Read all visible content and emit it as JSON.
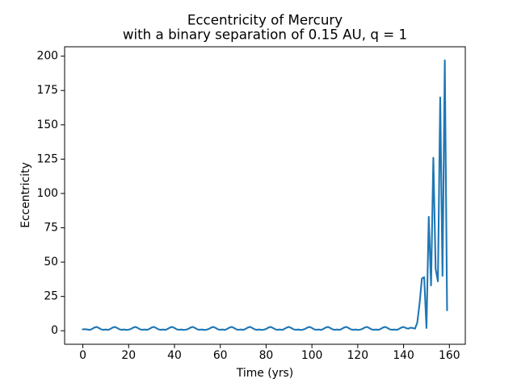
{
  "chart_data": {
    "type": "line",
    "title": "Eccentricity of Mercury",
    "subtitle": "with a binary separation of 0.15 AU, q = 1",
    "x_label": "Time (yrs)",
    "y_label": "Eccentricity",
    "color": "#1f77b4",
    "x": [
      0,
      1,
      2,
      3,
      4,
      5,
      6,
      7,
      8,
      9,
      10,
      11,
      12,
      13,
      14,
      15,
      16,
      17,
      18,
      19,
      20,
      21,
      22,
      23,
      24,
      25,
      26,
      27,
      28,
      29,
      30,
      31,
      32,
      33,
      34,
      35,
      36,
      37,
      38,
      39,
      40,
      41,
      42,
      43,
      44,
      45,
      46,
      47,
      48,
      49,
      50,
      51,
      52,
      53,
      54,
      55,
      56,
      57,
      58,
      59,
      60,
      61,
      62,
      63,
      64,
      65,
      66,
      67,
      68,
      69,
      70,
      71,
      72,
      73,
      74,
      75,
      76,
      77,
      78,
      79,
      80,
      81,
      82,
      83,
      84,
      85,
      86,
      87,
      88,
      89,
      90,
      91,
      92,
      93,
      94,
      95,
      96,
      97,
      98,
      99,
      100,
      101,
      102,
      103,
      104,
      105,
      106,
      107,
      108,
      109,
      110,
      111,
      112,
      113,
      114,
      115,
      116,
      117,
      118,
      119,
      120,
      121,
      122,
      123,
      124,
      125,
      126,
      127,
      128,
      129,
      130,
      131,
      132,
      133,
      134,
      135,
      136,
      137,
      138,
      139,
      140,
      141,
      142,
      143,
      144,
      145,
      146,
      147,
      148,
      149,
      150,
      151,
      152,
      153,
      154,
      155,
      156,
      157,
      158,
      159
    ],
    "values": [
      1.0,
      1.1,
      0.9,
      0.6,
      1.3,
      2.3,
      2.8,
      2.0,
      1.0,
      0.7,
      0.9,
      0.6,
      1.3,
      2.3,
      2.8,
      2.0,
      1.0,
      0.7,
      0.9,
      0.6,
      0.8,
      1.3,
      2.3,
      2.8,
      2.0,
      1.0,
      0.7,
      0.9,
      0.6,
      1.3,
      2.3,
      2.8,
      2.0,
      1.0,
      0.7,
      0.9,
      0.6,
      1.3,
      2.3,
      2.8,
      2.0,
      1.0,
      0.7,
      0.9,
      0.6,
      0.8,
      1.3,
      2.3,
      2.8,
      2.0,
      1.0,
      0.7,
      0.9,
      0.6,
      0.8,
      1.3,
      2.3,
      2.8,
      2.0,
      1.0,
      0.7,
      0.9,
      0.6,
      1.3,
      2.3,
      2.8,
      2.0,
      1.0,
      0.7,
      0.9,
      0.6,
      1.3,
      2.3,
      2.8,
      2.0,
      1.0,
      0.7,
      0.9,
      0.6,
      0.8,
      1.3,
      2.3,
      2.8,
      2.0,
      1.0,
      0.7,
      0.9,
      0.6,
      1.3,
      2.3,
      2.8,
      2.0,
      1.0,
      0.7,
      0.9,
      0.6,
      0.8,
      1.3,
      2.3,
      2.8,
      2.0,
      1.0,
      0.7,
      0.9,
      0.6,
      1.3,
      2.3,
      2.8,
      2.0,
      1.0,
      0.7,
      0.9,
      0.6,
      1.3,
      2.3,
      2.8,
      2.0,
      1.0,
      0.7,
      0.9,
      0.6,
      0.8,
      1.3,
      2.3,
      2.8,
      2.0,
      1.0,
      0.7,
      0.9,
      0.6,
      1.3,
      2.3,
      2.8,
      2.0,
      1.0,
      0.7,
      0.9,
      0.6,
      1.3,
      2.3,
      2.8,
      2.0,
      1.5,
      2.2,
      2.0,
      1.5,
      6,
      20,
      38,
      39,
      2,
      83,
      33,
      126,
      45,
      36,
      170,
      40,
      197,
      15
    ],
    "xlim": [
      -7.95,
      166.95
    ],
    "xticks": [
      0,
      20,
      40,
      60,
      80,
      100,
      120,
      140,
      160
    ],
    "ylim": [
      -9.85,
      206.85
    ],
    "yticks": [
      0,
      25,
      50,
      75,
      100,
      125,
      150,
      175,
      200
    ],
    "grid": false
  }
}
